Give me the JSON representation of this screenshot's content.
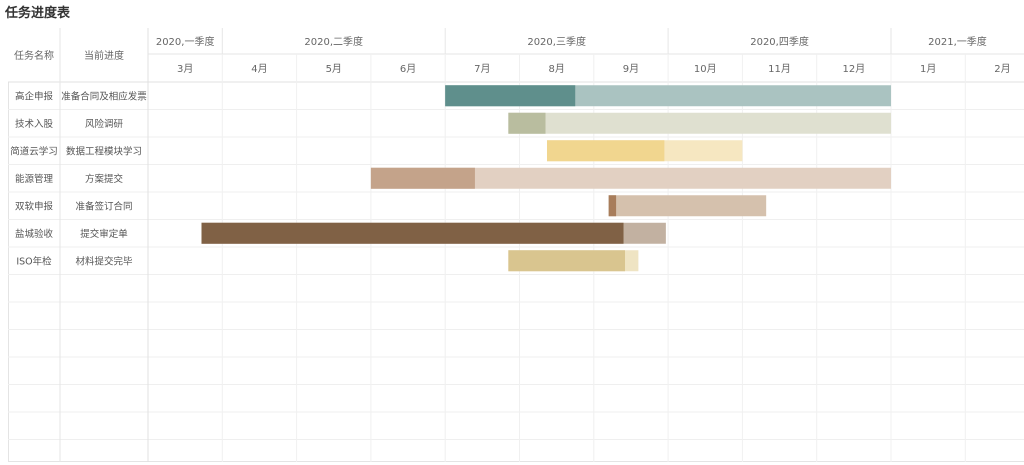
{
  "title": "任务进度表",
  "header": {
    "task_col": "任务名称",
    "progress_col": "当前进度"
  },
  "quarters": [
    {
      "label": "2020,一季度",
      "start": 0,
      "span": 1
    },
    {
      "label": "2020,二季度",
      "start": 1,
      "span": 3
    },
    {
      "label": "2020,三季度",
      "start": 4,
      "span": 3
    },
    {
      "label": "2020,四季度",
      "start": 7,
      "span": 3
    },
    {
      "label": "2021,一季度",
      "start": 10,
      "span": 2
    }
  ],
  "months": [
    "3月",
    "4月",
    "5月",
    "6月",
    "7月",
    "8月",
    "9月",
    "10月",
    "11月",
    "12月",
    "1月",
    "2月"
  ],
  "chart_data": {
    "type": "gantt",
    "x_unit": "month index (0 = 2020年3月)",
    "tasks": [
      {
        "name": "高企申报",
        "progress": "准备合同及相应发票",
        "start": 4.0,
        "done": 5.75,
        "end": 10.0,
        "color_done": "#5f8f8c",
        "color_rest": "#aac3c1"
      },
      {
        "name": "技术入股",
        "progress": "风险调研",
        "start": 4.85,
        "done": 5.35,
        "end": 10.0,
        "color_done": "#b9bd9f",
        "color_rest": "#dfe0d0"
      },
      {
        "name": "简道云学习",
        "progress": "数据工程模块学习",
        "start": 5.37,
        "done": 6.95,
        "end": 8.0,
        "color_done": "#f1d68f",
        "color_rest": "#f6e7c1"
      },
      {
        "name": "能源管理",
        "progress": "方案提交",
        "start": 3.0,
        "done": 4.4,
        "end": 10.0,
        "color_done": "#c4a38a",
        "color_rest": "#e2d0c2"
      },
      {
        "name": "双软申报",
        "progress": "准备签订合同",
        "start": 6.2,
        "done": 6.3,
        "end": 8.32,
        "color_done": "#a87d5b",
        "color_rest": "#d5c1ad"
      },
      {
        "name": "盐城验收",
        "progress": "提交审定单",
        "start": 0.72,
        "done": 6.4,
        "end": 6.97,
        "color_done": "#806145",
        "color_rest": "#c2b1a1"
      },
      {
        "name": "ISO年检",
        "progress": "材料提交完毕",
        "start": 4.85,
        "done": 6.42,
        "end": 6.6,
        "color_done": "#d9c58f",
        "color_rest": "#efe4c3"
      }
    ],
    "empty_rows": 7
  }
}
